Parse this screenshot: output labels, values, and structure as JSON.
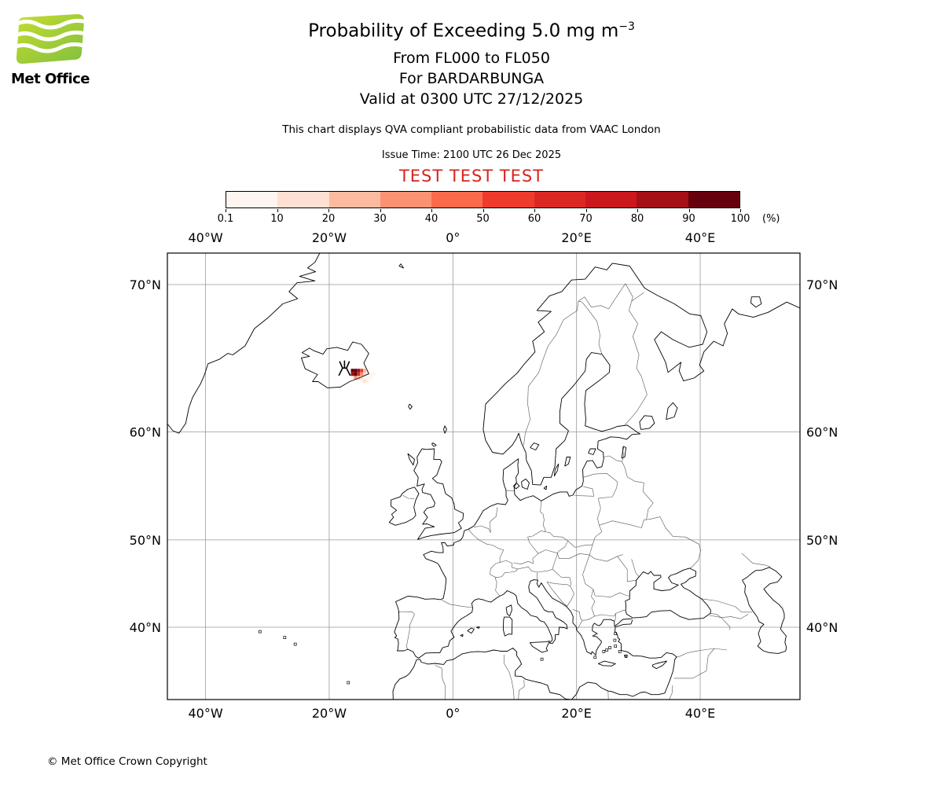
{
  "logo": {
    "brand": "Met Office"
  },
  "header": {
    "title_main": "Probability of Exceeding 5.0 mg m",
    "title_sup": "−3",
    "subtitle_levels": "From FL000 to FL050",
    "subtitle_volcano": "For BARDARBUNGA",
    "subtitle_valid": "Valid at 0300 UTC 27/12/2025",
    "note": "This chart displays QVA compliant probabilistic data from VAAC London",
    "issue_time": "Issue Time: 2100 UTC 26 Dec 2025",
    "test_banner": "TEST TEST TEST"
  },
  "colorbar": {
    "tick_labels": [
      "0.1",
      "10",
      "20",
      "30",
      "40",
      "50",
      "60",
      "70",
      "80",
      "90",
      "100"
    ],
    "unit_label": "(%)",
    "colors": [
      "#fff5f0",
      "#fee0d2",
      "#fcbba1",
      "#fc9272",
      "#fb6a4a",
      "#ef3b2c",
      "#db2824",
      "#cb181d",
      "#a50f15",
      "#67000d"
    ]
  },
  "map": {
    "x_ticks": [
      {
        "label": "40°W",
        "lon": -40
      },
      {
        "label": "20°W",
        "lon": -20
      },
      {
        "label": "0°",
        "lon": 0
      },
      {
        "label": "20°E",
        "lon": 20
      },
      {
        "label": "40°E",
        "lon": 40
      }
    ],
    "y_ticks": [
      {
        "label": "70°N",
        "lat": 70
      },
      {
        "label": "60°N",
        "lat": 60
      },
      {
        "label": "50°N",
        "lat": 50
      },
      {
        "label": "40°N",
        "lat": 40
      }
    ],
    "volcano": {
      "name": "BARDARBUNGA",
      "lon": -17.53,
      "lat": 64.64
    }
  },
  "chart_data": {
    "type": "heatmap",
    "title": "Probability of Exceeding 5.0 mg m⁻³",
    "layer": "FL000 to FL050",
    "volcano": "BARDARBUNGA",
    "valid_time": "0300 UTC 27/12/2025",
    "issue_time": "2100 UTC 26 Dec 2025",
    "source": "VAAC London",
    "units": "%",
    "prob_bins_pct": [
      0.1,
      10,
      20,
      30,
      40,
      50,
      60,
      70,
      80,
      90,
      100
    ],
    "cell_size": {
      "dlon": 0.5,
      "dlat": 0.25
    },
    "cells": [
      [
        -16.5,
        64.5,
        95
      ],
      [
        -16.0,
        64.5,
        95
      ],
      [
        -15.5,
        64.5,
        85
      ],
      [
        -15.0,
        64.5,
        55
      ],
      [
        -14.5,
        64.5,
        25
      ],
      [
        -14.0,
        64.5,
        5
      ],
      [
        -16.5,
        64.25,
        85
      ],
      [
        -16.0,
        64.25,
        95
      ],
      [
        -15.5,
        64.25,
        65
      ],
      [
        -15.0,
        64.25,
        35
      ],
      [
        -14.5,
        64.25,
        15
      ],
      [
        -14.0,
        64.25,
        5
      ],
      [
        -13.5,
        64.25,
        5
      ],
      [
        -13.0,
        64.25,
        5
      ],
      [
        -16.0,
        64.0,
        35
      ],
      [
        -15.5,
        64.0,
        25
      ],
      [
        -15.0,
        64.0,
        15
      ],
      [
        -14.5,
        64.0,
        5
      ],
      [
        -14.0,
        64.0,
        5
      ],
      [
        -13.5,
        64.0,
        5
      ],
      [
        -15.0,
        63.75,
        5
      ],
      [
        -14.5,
        63.75,
        15
      ],
      [
        -14.0,
        63.75,
        5
      ]
    ]
  },
  "footer": {
    "copyright": "© Met Office Crown Copyright"
  }
}
